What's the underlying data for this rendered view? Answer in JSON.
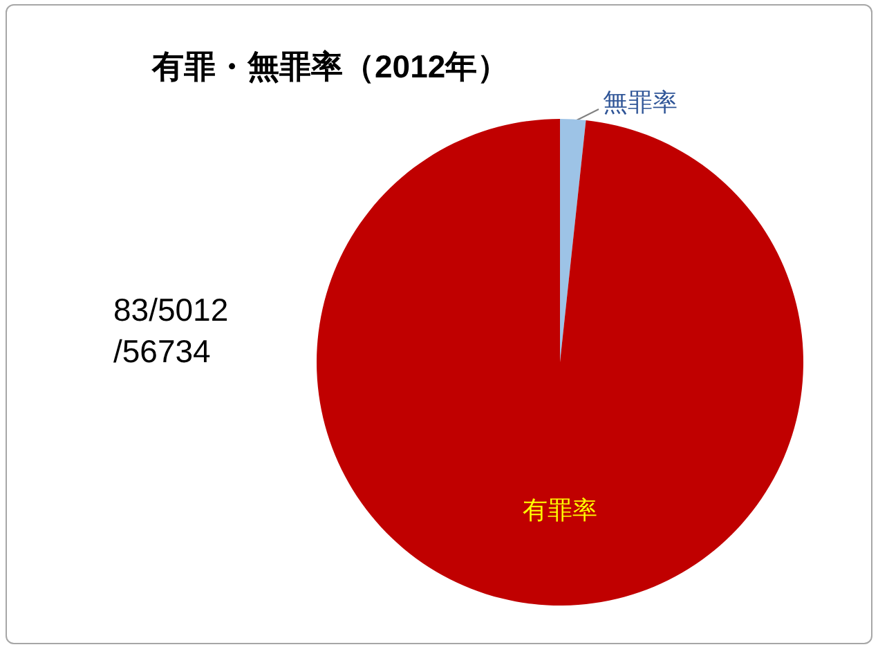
{
  "chart_data": {
    "type": "pie",
    "title": "有罪・無罪率（2012年）",
    "categories": [
      "無罪率",
      "有罪率"
    ],
    "values": [
      1.7,
      98.3
    ],
    "colors": [
      "#9dc3e6",
      "#c00000"
    ],
    "annotations": [
      "83/5012\n/56734"
    ]
  }
}
